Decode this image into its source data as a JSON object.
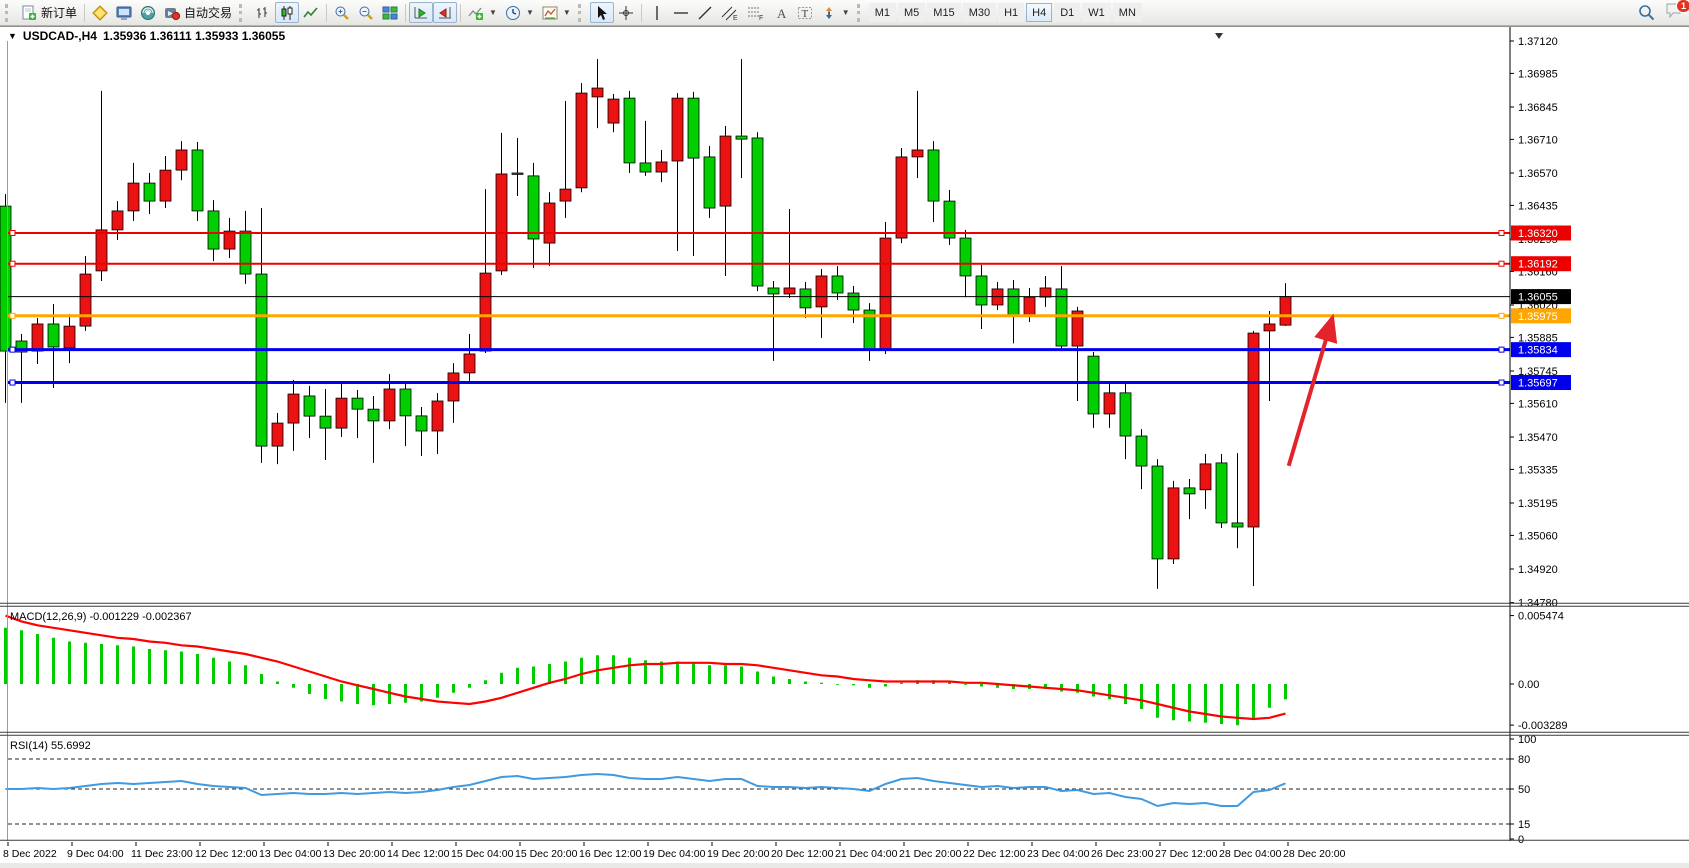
{
  "toolbar": {
    "new_order_label": "新订单",
    "autotrading_label": "自动交易",
    "timeframes": [
      "M1",
      "M5",
      "M15",
      "M30",
      "H1",
      "H4",
      "D1",
      "W1",
      "MN"
    ],
    "active_timeframe": "H4",
    "notification_count": "1"
  },
  "chart": {
    "title_symbol": "USDCAD-,H4",
    "title_ohlc": "1.35936 1.36111 1.35933 1.36055"
  },
  "chart_data": {
    "type": "candlestick",
    "symbol": "USDCAD-",
    "timeframe": "H4",
    "current_bar": {
      "open": "1.35936",
      "high": "1.36111",
      "low": "1.35933",
      "close": "1.36055"
    },
    "y_axis": {
      "min": 1.3478,
      "max": 1.3712,
      "ticks": [
        "1.37120",
        "1.36985",
        "1.36845",
        "1.36710",
        "1.36570",
        "1.36435",
        "1.36295",
        "1.36160",
        "1.36020",
        "1.35885",
        "1.35745",
        "1.35610",
        "1.35470",
        "1.35335",
        "1.35195",
        "1.35060",
        "1.34920",
        "1.34780"
      ]
    },
    "x_labels": [
      "8 Dec 2022",
      "9 Dec 04:00",
      "11 Dec 23:00",
      "12 Dec 12:00",
      "13 Dec 04:00",
      "13 Dec 20:00",
      "14 Dec 12:00",
      "15 Dec 04:00",
      "15 Dec 20:00",
      "16 Dec 12:00",
      "19 Dec 04:00",
      "19 Dec 20:00",
      "20 Dec 12:00",
      "21 Dec 04:00",
      "21 Dec 20:00",
      "22 Dec 12:00",
      "23 Dec 04:00",
      "26 Dec 23:00",
      "27 Dec 12:00",
      "28 Dec 04:00",
      "28 Dec 20:00"
    ],
    "hlines": [
      {
        "price": 1.3632,
        "label": "1.36320",
        "color": "#ee0000",
        "width": 2,
        "markers": true
      },
      {
        "price": 1.36192,
        "label": "1.36192",
        "color": "#ee0000",
        "width": 2,
        "markers": true
      },
      {
        "price": 1.36055,
        "label": "1.36055",
        "color": "#000000",
        "width": 1,
        "markers": false
      },
      {
        "price": 1.35975,
        "label": "1.35975",
        "color": "#ffa500",
        "width": 3,
        "markers": true
      },
      {
        "price": 1.35834,
        "label": "1.35834",
        "color": "#0000ee",
        "width": 3,
        "markers": true
      },
      {
        "price": 1.35697,
        "label": "1.35697",
        "color": "#0000ee",
        "width": 3,
        "markers": true
      }
    ],
    "arrow": {
      "from_index": 80.2,
      "from_price": 1.3535,
      "to_index": 82.9,
      "to_price": 1.3596,
      "color": "#e3242b"
    },
    "colors": {
      "up": "#ee1111",
      "down": "#00cf00",
      "wick": "#000000",
      "outline": "#000000",
      "macd_bar": "#00cc00",
      "macd_signal": "#ff0000",
      "rsi_line": "#3e9ae3",
      "background": "#ffffff"
    },
    "candles": [
      [
        1.36432,
        1.36482,
        1.35612,
        1.35828
      ],
      [
        1.3587,
        1.35899,
        1.35612,
        1.35824
      ],
      [
        1.35828,
        1.35966,
        1.35774,
        1.35941
      ],
      [
        1.35941,
        1.36024,
        1.35674,
        1.35845
      ],
      [
        1.35841,
        1.35982,
        1.35778,
        1.35932
      ],
      [
        1.35932,
        1.36224,
        1.35912,
        1.36149
      ],
      [
        1.36162,
        1.36912,
        1.3612,
        1.36333
      ],
      [
        1.36333,
        1.36453,
        1.36291,
        1.36412
      ],
      [
        1.36412,
        1.36612,
        1.3637,
        1.36528
      ],
      [
        1.36528,
        1.3657,
        1.36399,
        1.36453
      ],
      [
        1.36453,
        1.36641,
        1.36424,
        1.36582
      ],
      [
        1.36582,
        1.36703,
        1.3654,
        1.36666
      ],
      [
        1.36666,
        1.36699,
        1.3637,
        1.36412
      ],
      [
        1.36412,
        1.36457,
        1.36203,
        1.36253
      ],
      [
        1.36253,
        1.36383,
        1.36216,
        1.36328
      ],
      [
        1.36328,
        1.36412,
        1.36108,
        1.36149
      ],
      [
        1.36149,
        1.36424,
        1.35362,
        1.35432
      ],
      [
        1.35432,
        1.3557,
        1.35357,
        1.35528
      ],
      [
        1.35528,
        1.35708,
        1.35412,
        1.35649
      ],
      [
        1.35641,
        1.35683,
        1.35466,
        1.35557
      ],
      [
        1.35557,
        1.3567,
        1.35374,
        1.35507
      ],
      [
        1.35507,
        1.35703,
        1.3547,
        1.35632
      ],
      [
        1.35632,
        1.35666,
        1.35466,
        1.35586
      ],
      [
        1.35586,
        1.35641,
        1.35362,
        1.35537
      ],
      [
        1.35537,
        1.35732,
        1.35503,
        1.3567
      ],
      [
        1.3567,
        1.35703,
        1.35432,
        1.35558
      ],
      [
        1.35558,
        1.35595,
        1.35391,
        1.35495
      ],
      [
        1.35495,
        1.35653,
        1.35399,
        1.3562
      ],
      [
        1.3562,
        1.35778,
        1.35529,
        1.35737
      ],
      [
        1.35737,
        1.35899,
        1.35703,
        1.35816
      ],
      [
        1.35828,
        1.36503,
        1.3582,
        1.36153
      ],
      [
        1.36162,
        1.36737,
        1.36145,
        1.36566
      ],
      [
        1.36566,
        1.36716,
        1.36474,
        1.3657
      ],
      [
        1.36558,
        1.36612,
        1.36174,
        1.36295
      ],
      [
        1.36278,
        1.3649,
        1.36182,
        1.36445
      ],
      [
        1.36453,
        1.3687,
        1.36383,
        1.36503
      ],
      [
        1.36508,
        1.36945,
        1.3649,
        1.36903
      ],
      [
        1.36887,
        1.37045,
        1.36757,
        1.36924
      ],
      [
        1.36778,
        1.36899,
        1.3674,
        1.36878
      ],
      [
        1.36882,
        1.36912,
        1.3657,
        1.36612
      ],
      [
        1.36612,
        1.36787,
        1.36558,
        1.36574
      ],
      [
        1.36574,
        1.36666,
        1.36532,
        1.36616
      ],
      [
        1.3662,
        1.36903,
        1.36245,
        1.36882
      ],
      [
        1.36882,
        1.36908,
        1.36224,
        1.36632
      ],
      [
        1.36637,
        1.36683,
        1.36383,
        1.36424
      ],
      [
        1.36432,
        1.36766,
        1.36141,
        1.36724
      ],
      [
        1.36724,
        1.37045,
        1.36549,
        1.36711
      ],
      [
        1.36716,
        1.3674,
        1.36078,
        1.36099
      ],
      [
        1.36091,
        1.3612,
        1.35787,
        1.36066
      ],
      [
        1.36066,
        1.3642,
        1.36049,
        1.36091
      ],
      [
        1.36087,
        1.36116,
        1.35966,
        1.36008
      ],
      [
        1.36012,
        1.3617,
        1.35883,
        1.36141
      ],
      [
        1.36141,
        1.36182,
        1.36041,
        1.3607
      ],
      [
        1.3607,
        1.36099,
        1.35945,
        1.35999
      ],
      [
        1.35999,
        1.36028,
        1.35787,
        1.35837
      ],
      [
        1.35837,
        1.36366,
        1.35816,
        1.36299
      ],
      [
        1.36299,
        1.36674,
        1.36278,
        1.36637
      ],
      [
        1.36637,
        1.36912,
        1.36549,
        1.36666
      ],
      [
        1.36666,
        1.36703,
        1.36366,
        1.36453
      ],
      [
        1.36453,
        1.36499,
        1.3627,
        1.36299
      ],
      [
        1.36299,
        1.36333,
        1.36053,
        1.36141
      ],
      [
        1.36141,
        1.36187,
        1.3592,
        1.3602
      ],
      [
        1.3602,
        1.36116,
        1.35999,
        1.36087
      ],
      [
        1.36087,
        1.36124,
        1.3586,
        1.35974
      ],
      [
        1.35974,
        1.36091,
        1.35949,
        1.36053
      ],
      [
        1.36053,
        1.36141,
        1.36012,
        1.36091
      ],
      [
        1.36087,
        1.36182,
        1.35828,
        1.35849
      ],
      [
        1.35849,
        1.36012,
        1.3562,
        1.35995
      ],
      [
        1.35807,
        1.35824,
        1.35508,
        1.35566
      ],
      [
        1.35566,
        1.35703,
        1.35508,
        1.35654
      ],
      [
        1.35654,
        1.35691,
        1.35378,
        1.35474
      ],
      [
        1.35474,
        1.35503,
        1.35253,
        1.35349
      ],
      [
        1.35349,
        1.35378,
        1.34837,
        1.34962
      ],
      [
        1.34962,
        1.35287,
        1.34941,
        1.35258
      ],
      [
        1.35258,
        1.35295,
        1.35128,
        1.35233
      ],
      [
        1.3525,
        1.35399,
        1.3517,
        1.35358
      ],
      [
        1.35362,
        1.35399,
        1.35091,
        1.35112
      ],
      [
        1.35112,
        1.35403,
        1.35007,
        1.35095
      ],
      [
        1.35095,
        1.35912,
        1.34849,
        1.35903
      ],
      [
        1.35912,
        1.35995,
        1.3562,
        1.35941
      ],
      [
        1.35936,
        1.36111,
        1.35933,
        1.36055
      ]
    ],
    "macd": {
      "name": "MACD(12,26,9)",
      "main_value": "-0.001229",
      "signal_value": "-0.002367",
      "axis_max": "0.005474",
      "axis_zero": "0.00",
      "axis_min": "-0.003289",
      "main": [
        0.0045,
        0.0043,
        0.004,
        0.0037,
        0.0034,
        0.0033,
        0.0032,
        0.0031,
        0.003,
        0.0028,
        0.0027,
        0.0026,
        0.0024,
        0.0021,
        0.0018,
        0.0015,
        0.0008,
        0.0002,
        -0.0003,
        -0.0008,
        -0.0012,
        -0.0014,
        -0.0016,
        -0.0017,
        -0.0016,
        -0.0015,
        -0.0014,
        -0.0011,
        -0.0007,
        -0.0003,
        0.0003,
        0.0009,
        0.0013,
        0.0014,
        0.0016,
        0.0018,
        0.0021,
        0.0023,
        0.0023,
        0.0021,
        0.0019,
        0.0018,
        0.0018,
        0.0017,
        0.0015,
        0.0015,
        0.0014,
        0.001,
        0.0006,
        0.0004,
        0.0002,
        0.0001,
        0.0,
        -0.0001,
        -0.0003,
        -0.0002,
        0.0001,
        0.0003,
        0.0003,
        0.0002,
        0.0,
        -0.0002,
        -0.0003,
        -0.0004,
        -0.0004,
        -0.0004,
        -0.0006,
        -0.0007,
        -0.001,
        -0.0012,
        -0.0016,
        -0.002,
        -0.0027,
        -0.0029,
        -0.003,
        -0.0031,
        -0.0032,
        -0.0033,
        -0.0028,
        -0.0019,
        -0.001229
      ],
      "signal": [
        0.005474,
        0.005,
        0.0047,
        0.0045,
        0.0043,
        0.0041,
        0.0039,
        0.0037,
        0.0036,
        0.0034,
        0.0033,
        0.0031,
        0.003,
        0.0028,
        0.0026,
        0.0024,
        0.0021,
        0.0018,
        0.0014,
        0.001,
        0.0006,
        0.0002,
        -0.0001,
        -0.0004,
        -0.0007,
        -0.001,
        -0.0012,
        -0.0014,
        -0.0015,
        -0.0016,
        -0.0014,
        -0.0011,
        -0.0007,
        -0.0003,
        0.0001,
        0.0004,
        0.0008,
        0.0011,
        0.0013,
        0.0015,
        0.0016,
        0.0016,
        0.0017,
        0.0017,
        0.0017,
        0.0016,
        0.0016,
        0.0015,
        0.0013,
        0.0011,
        0.0009,
        0.0007,
        0.0006,
        0.0004,
        0.0003,
        0.0002,
        0.0002,
        0.0002,
        0.0002,
        0.0002,
        0.0001,
        0.0001,
        0.0,
        -0.0001,
        -0.0002,
        -0.0003,
        -0.0004,
        -0.0005,
        -0.0007,
        -0.0009,
        -0.0011,
        -0.0013,
        -0.0016,
        -0.0019,
        -0.0022,
        -0.0024,
        -0.0026,
        -0.0027,
        -0.0028,
        -0.0027,
        -0.002367
      ]
    },
    "rsi": {
      "name": "RSI(14)",
      "value": "55.6992",
      "levels": [
        80,
        50,
        15
      ],
      "axis_ticks": [
        "100",
        "80",
        "50",
        "15",
        "0"
      ],
      "values": [
        50,
        50,
        51,
        50,
        51,
        53,
        55,
        56,
        55,
        56,
        57,
        58,
        55,
        53,
        52,
        51,
        44,
        45,
        46,
        45,
        45,
        46,
        45,
        46,
        47,
        46,
        47,
        49,
        52,
        54,
        58,
        62,
        63,
        60,
        61,
        62,
        64,
        65,
        64,
        61,
        60,
        60,
        62,
        60,
        58,
        60,
        60,
        53,
        52,
        52,
        51,
        52,
        51,
        50,
        48,
        55,
        60,
        61,
        58,
        56,
        54,
        52,
        53,
        51,
        52,
        52,
        48,
        49,
        45,
        46,
        42,
        40,
        33,
        36,
        35,
        36,
        33,
        33,
        47,
        49,
        55.7
      ]
    }
  }
}
